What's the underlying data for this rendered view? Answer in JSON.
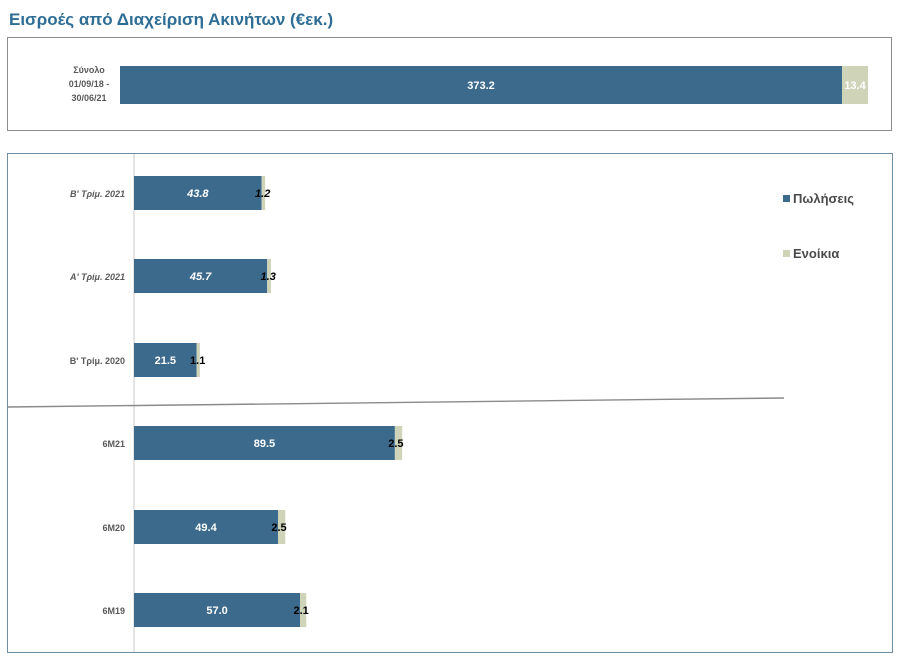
{
  "title": "Εισροές από Διαχείριση Ακινήτων (€εκ.)",
  "colors": {
    "sales": "#3c6a8d",
    "rents": "#cfd3b8",
    "title": "#2e6e96"
  },
  "legend": {
    "sales": "Πωλήσεις",
    "rents": "Ενοίκια"
  },
  "chart_data": [
    {
      "type": "bar",
      "orientation": "horizontal",
      "stacked": true,
      "categories": [
        [
          "Σύνολο",
          "01/09/18 -",
          "30/06/21"
        ]
      ],
      "series": [
        {
          "name": "Πωλήσεις",
          "values": [
            373.2
          ]
        },
        {
          "name": "Ενοίκια",
          "values": [
            13.4
          ]
        }
      ],
      "data_labels": {
        "sales": [
          "373.2"
        ],
        "rents": [
          "13.4"
        ]
      },
      "xlim": [
        0,
        386.6
      ]
    },
    {
      "type": "bar",
      "orientation": "horizontal",
      "stacked": true,
      "categories": [
        "Β' Τρίμ. 2021",
        "Α' Τρίμ. 2021",
        "Β' Τρίμ. 2020",
        "6M21",
        "6M20",
        "6M19"
      ],
      "category_style": [
        "italic",
        "italic",
        "normal",
        "normal",
        "normal",
        "normal"
      ],
      "series": [
        {
          "name": "Πωλήσεις",
          "values": [
            43.8,
            45.7,
            21.5,
            89.5,
            49.4,
            57.0
          ]
        },
        {
          "name": "Ενοίκια",
          "values": [
            1.2,
            1.3,
            1.1,
            2.5,
            2.5,
            2.1
          ]
        }
      ],
      "data_labels": {
        "sales": [
          "43.8",
          "45.7",
          "21.5",
          "89.5",
          "49.4",
          "57.0"
        ],
        "rents": [
          "1.2",
          "1.3",
          "1.1",
          "2.5",
          "2.5",
          "2.1"
        ]
      },
      "xlim": [
        0,
        223
      ]
    }
  ]
}
